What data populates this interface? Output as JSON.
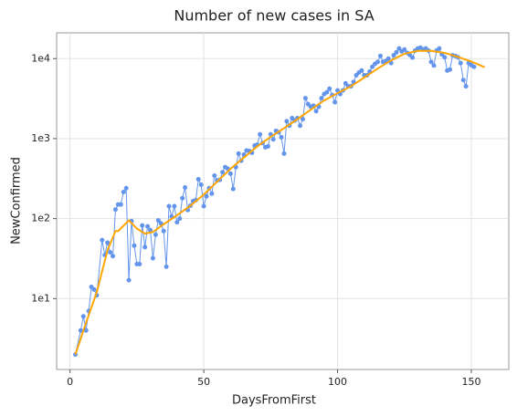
{
  "chart_data": {
    "type": "line",
    "title": "Number of new cases in SA",
    "x_label": "DaysFromFirst",
    "y_label": "NewConfirmed",
    "xlim": [
      -5,
      164
    ],
    "xticks": [
      0,
      50,
      100,
      150
    ],
    "ylim": [
      1.3,
      21000
    ],
    "log_y": true,
    "yticks": [
      {
        "value": 10,
        "label": "1e1"
      },
      {
        "value": 100,
        "label": "1e2"
      },
      {
        "value": 1000,
        "label": "1e3"
      },
      {
        "value": 10000,
        "label": "1e4"
      }
    ],
    "grid": true,
    "series": [
      {
        "color": "#6495ed",
        "markers": true,
        "x": [
          2,
          4,
          5,
          6,
          7,
          8,
          9,
          10,
          12,
          13,
          14,
          15,
          16,
          17,
          18,
          19,
          20,
          21,
          22,
          23,
          24,
          25,
          26,
          27,
          28,
          29,
          30,
          31,
          32,
          33,
          34,
          35,
          36,
          37,
          38,
          39,
          40,
          41,
          42,
          43,
          44,
          45,
          46,
          47,
          48,
          49,
          50,
          51,
          52,
          53,
          54,
          55,
          56,
          57,
          58,
          59,
          60,
          61,
          62,
          63,
          64,
          65,
          66,
          67,
          68,
          69,
          70,
          71,
          72,
          73,
          74,
          75,
          76,
          77,
          78,
          79,
          80,
          81,
          82,
          83,
          84,
          85,
          86,
          87,
          88,
          89,
          90,
          91,
          92,
          93,
          94,
          95,
          96,
          97,
          98,
          99,
          100,
          101,
          102,
          103,
          104,
          105,
          106,
          107,
          108,
          109,
          110,
          111,
          112,
          113,
          114,
          115,
          116,
          117,
          118,
          119,
          120,
          121,
          122,
          123,
          124,
          125,
          126,
          127,
          128,
          129,
          130,
          131,
          132,
          133,
          134,
          135,
          136,
          137,
          138,
          139,
          140,
          141,
          142,
          143,
          144,
          145,
          146,
          147,
          148,
          149,
          150,
          151
        ],
        "values": [
          2,
          4,
          6,
          4,
          7,
          14,
          13,
          11,
          54,
          35,
          50,
          38,
          34,
          130,
          150,
          150,
          215,
          240,
          17,
          93,
          46,
          27,
          27,
          82,
          44,
          80,
          72,
          32,
          63,
          95,
          87,
          70,
          25,
          143,
          106,
          143,
          90,
          100,
          180,
          245,
          128,
          145,
          165,
          170,
          310,
          265,
          143,
          190,
          240,
          205,
          345,
          300,
          305,
          380,
          440,
          420,
          365,
          235,
          440,
          650,
          530,
          630,
          710,
          700,
          665,
          820,
          840,
          1130,
          880,
          780,
          800,
          1130,
          980,
          1250,
          1200,
          1040,
          650,
          1650,
          1450,
          1800,
          1680,
          1800,
          1450,
          1750,
          3200,
          2700,
          2500,
          2580,
          2200,
          2500,
          3200,
          3600,
          3800,
          4200,
          3500,
          2850,
          4000,
          3600,
          4000,
          4900,
          4500,
          4500,
          5100,
          6200,
          6700,
          7100,
          6200,
          6200,
          6900,
          7900,
          8600,
          9100,
          10800,
          9100,
          9300,
          10000,
          8800,
          11000,
          12000,
          13400,
          12300,
          13000,
          11800,
          11100,
          10300,
          12600,
          13400,
          13700,
          13000,
          13400,
          12600,
          9100,
          8200,
          12600,
          13400,
          11300,
          10400,
          7100,
          7300,
          11000,
          10800,
          10400,
          8800,
          5400,
          4500,
          8800,
          8300,
          7900
        ]
      },
      {
        "color": "#ffa500",
        "markers": false,
        "x": [
          2,
          6,
          10,
          14,
          17,
          18,
          22,
          25,
          28,
          31,
          35,
          40,
          45,
          50,
          55,
          60,
          65,
          70,
          75,
          80,
          85,
          90,
          95,
          100,
          105,
          110,
          115,
          120,
          125,
          130,
          135,
          140,
          145,
          150,
          155
        ],
        "values": [
          2,
          5,
          12,
          40,
          70,
          70,
          95,
          75,
          65,
          68,
          85,
          110,
          145,
          200,
          290,
          420,
          580,
          800,
          1050,
          1350,
          1750,
          2300,
          3000,
          3700,
          4500,
          5800,
          7500,
          9500,
          11500,
          12500,
          12500,
          11800,
          10500,
          9200,
          7800
        ]
      }
    ]
  }
}
